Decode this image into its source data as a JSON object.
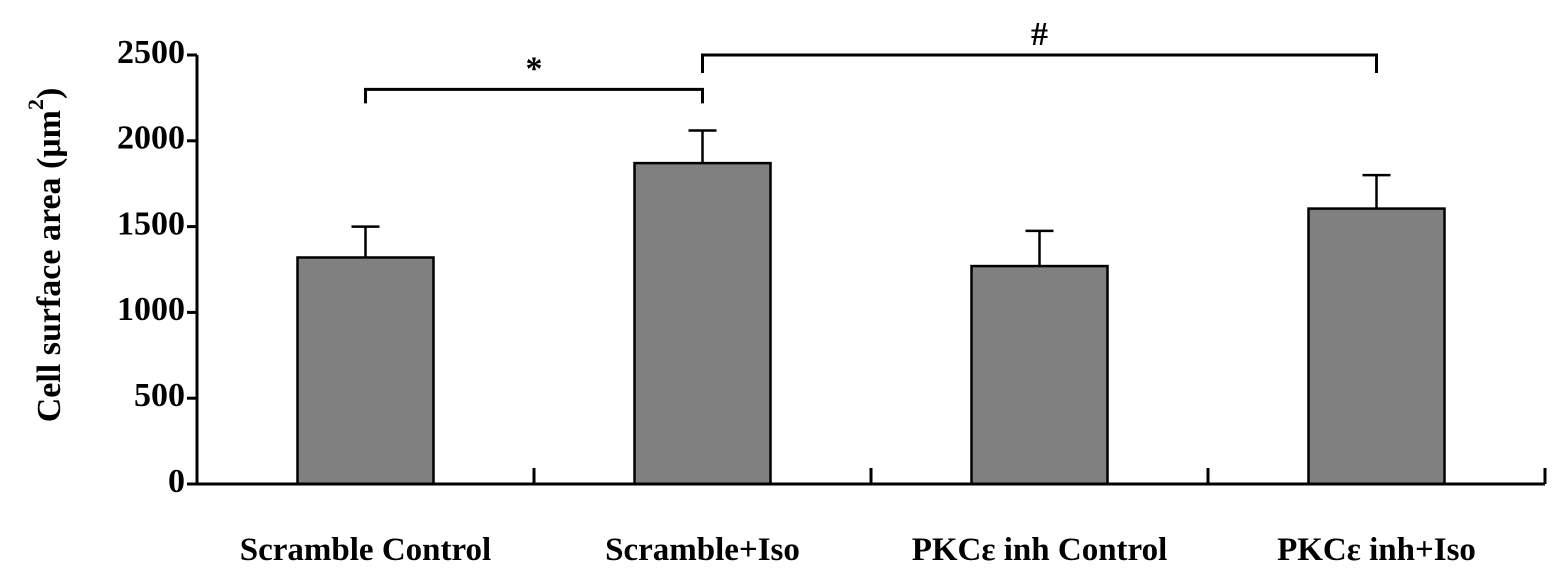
{
  "chart_data": {
    "type": "bar",
    "categories": [
      "Scramble Control",
      "Scramble+Iso",
      "PKCε inh Control",
      "PKCε inh+Iso"
    ],
    "values": [
      1320,
      1870,
      1270,
      1605
    ],
    "error": [
      180,
      190,
      205,
      195
    ],
    "ylabel": "Cell surface area (μm",
    "ylabel_sup": "2",
    "ylabel_close": ")",
    "ylim": [
      0,
      2500
    ],
    "yticks": [
      0,
      500,
      1000,
      1500,
      2000,
      2500
    ],
    "ytick_labels": [
      "0",
      "500",
      "1000",
      "1500",
      "2000",
      "2500"
    ],
    "grid": false,
    "bar_color": "#808080",
    "significance": [
      {
        "from": 0,
        "to": 1,
        "y": 2300,
        "label": "*"
      },
      {
        "from": 1,
        "to": 3,
        "y": 2500,
        "label": "#"
      }
    ]
  }
}
